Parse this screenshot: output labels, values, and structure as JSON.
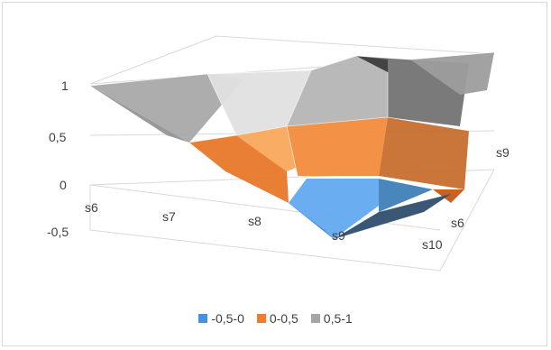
{
  "chart_data": {
    "type": "surface",
    "series": [
      {
        "name": "-0,5-0",
        "color": "#4a90e2"
      },
      {
        "name": "0-0,5",
        "color": "#ed7d31"
      },
      {
        "name": "0,5-1",
        "color": "#a5a5a5"
      }
    ],
    "z_ticks": [
      "1",
      "0,5",
      "0",
      "-0,5"
    ],
    "x_ticks": [
      "s6",
      "s7",
      "s8",
      "s9"
    ],
    "depth_ticks": [
      "s9",
      "s6",
      "s10"
    ],
    "zlim": [
      -0.5,
      1
    ],
    "legend_position": "bottom"
  }
}
